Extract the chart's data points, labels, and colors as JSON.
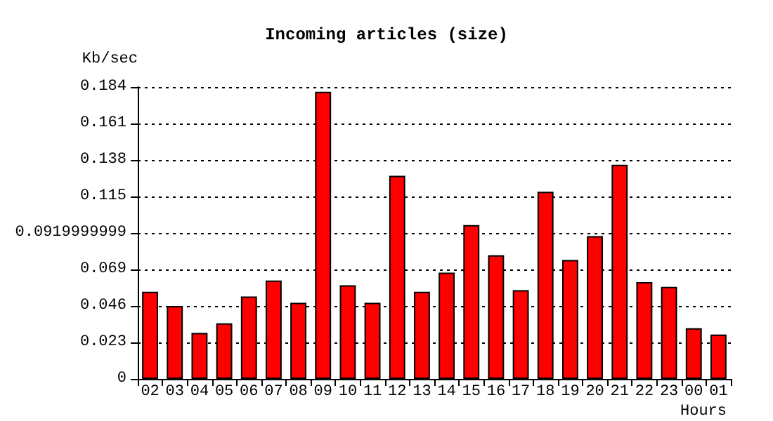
{
  "chart_data": {
    "type": "bar",
    "title": "Incoming articles (size)",
    "ylabel": "Kb/sec",
    "xlabel": "Hours",
    "categories": [
      "02",
      "03",
      "04",
      "05",
      "06",
      "07",
      "08",
      "09",
      "10",
      "11",
      "12",
      "13",
      "14",
      "15",
      "16",
      "17",
      "18",
      "19",
      "20",
      "21",
      "22",
      "23",
      "00",
      "01"
    ],
    "series": [
      {
        "color": "#ff0000",
        "values": [
          0.055,
          0.046,
          0.029,
          0.035,
          0.052,
          0.062,
          0.048,
          0.181,
          0.059,
          0.048,
          0.128,
          0.055,
          0.067,
          0.097,
          0.078,
          0.056,
          0.118,
          0.075,
          0.09,
          0.135,
          0.061,
          0.058,
          0.032,
          0.028
        ]
      }
    ],
    "ylim": [
      0,
      0.184
    ],
    "yticks": [
      0,
      0.023,
      0.046,
      0.069,
      0.0919999999,
      0.115,
      0.138,
      0.161,
      0.184
    ],
    "grid": "y"
  }
}
